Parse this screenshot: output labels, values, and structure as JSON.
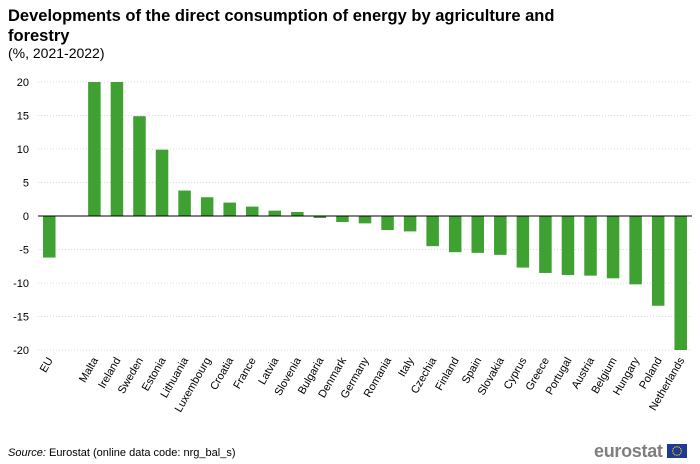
{
  "header": {
    "title": "Developments of the direct consumption of energy by agriculture and forestry",
    "subtitle": "(%, 2021-2022)"
  },
  "footer": {
    "source_label": "Source:",
    "source_text": " Eurostat (online data code: nrg_bal_s)",
    "logo": "eurostat",
    "flag_icon": "eu-flag-icon"
  },
  "colors": {
    "bar": "#3ea132",
    "grid": "#d9d9d9",
    "axis": "#000000",
    "logo_text": "#7f7f7f",
    "flag_blue": "#1f3a93",
    "flag_star": "#ffcc00"
  },
  "chart_data": {
    "type": "bar",
    "title": "Developments of the direct consumption of energy by agriculture and forestry",
    "subtitle": "(%, 2021-2022)",
    "categories": [
      "EU",
      "",
      "Malta",
      "Ireland",
      "Sweden",
      "Estonia",
      "Lithuania",
      "Luxembourg",
      "Croatia",
      "France",
      "Latvia",
      "Slovenia",
      "Bulgaria",
      "Denmark",
      "Germany",
      "Romania",
      "Italy",
      "Czechia",
      "Finland",
      "Spain",
      "Slovakia",
      "Cyprus",
      "Greece",
      "Portugal",
      "Austria",
      "Belgium",
      "Hungary",
      "Poland",
      "Netherlands"
    ],
    "values": [
      -6.2,
      null,
      20.0,
      20.0,
      14.9,
      9.9,
      3.8,
      2.8,
      2.0,
      1.4,
      0.8,
      0.6,
      -0.3,
      -0.9,
      -1.1,
      -2.1,
      -2.3,
      -4.5,
      -5.4,
      -5.5,
      -5.8,
      -7.7,
      -8.5,
      -8.8,
      -8.9,
      -9.3,
      -10.2,
      -13.4,
      -20.0
    ],
    "ylim": [
      -20,
      20
    ],
    "yticks": [
      20,
      15,
      10,
      5,
      0,
      -5,
      -10,
      -15,
      -20
    ],
    "xlabel": "",
    "ylabel": "",
    "grid": true,
    "legend": "none"
  }
}
